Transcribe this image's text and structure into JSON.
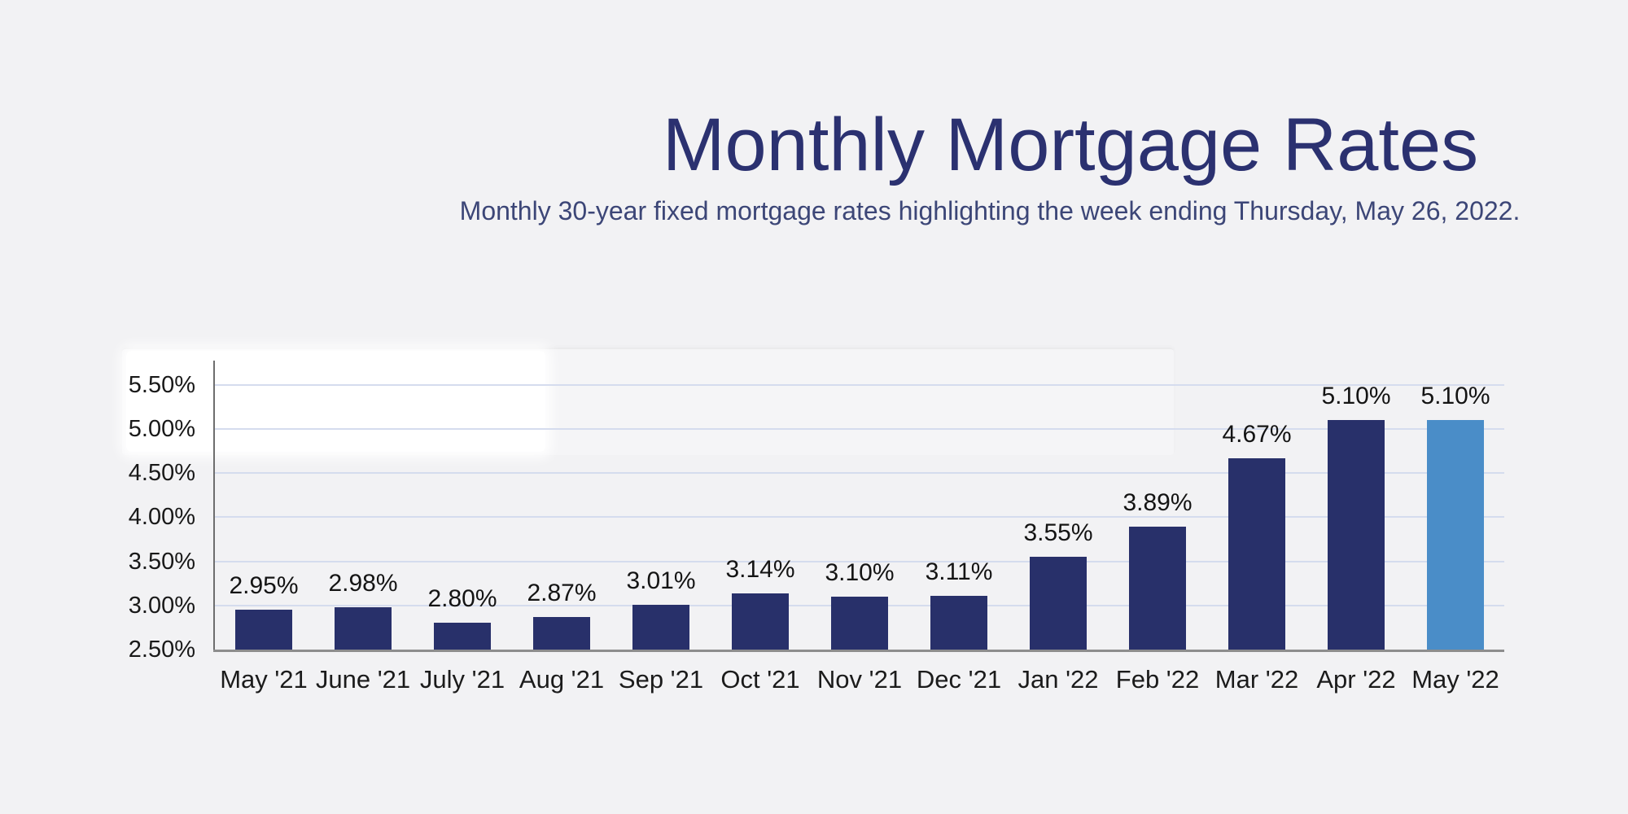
{
  "page": {
    "background": "#f2f2f4"
  },
  "header": {
    "title": "Monthly Mortgage Rates",
    "subtitle": "Monthly 30-year fixed mortgage rates highlighting the week ending Thursday, May 26, 2022.",
    "title_color": "#2b3170",
    "subtitle_color": "#3c4677"
  },
  "chart_data": {
    "type": "bar",
    "title": "Monthly Mortgage Rates",
    "subtitle": "Monthly 30-year fixed mortgage rates highlighting the week ending Thursday, May 26, 2022.",
    "categories": [
      "May '21",
      "June '21",
      "July '21",
      "Aug '21",
      "Sep '21",
      "Oct '21",
      "Nov '21",
      "Dec '21",
      "Jan '22",
      "Feb '22",
      "Mar '22",
      "Apr '22",
      "May '22"
    ],
    "values": [
      2.95,
      2.98,
      2.8,
      2.87,
      3.01,
      3.14,
      3.1,
      3.11,
      3.55,
      3.89,
      4.67,
      5.1,
      5.1
    ],
    "data_labels": [
      "2.95%",
      "2.98%",
      "2.80%",
      "2.87%",
      "3.01%",
      "3.14%",
      "3.10%",
      "3.11%",
      "3.55%",
      "3.89%",
      "4.67%",
      "5.10%",
      "5.10%"
    ],
    "y_ticks": [
      "5.50%",
      "5.00%",
      "4.50%",
      "4.00%",
      "3.50%",
      "3.00%",
      "2.50%"
    ],
    "y_tick_values": [
      5.5,
      5.0,
      4.5,
      4.0,
      3.5,
      3.0,
      2.5
    ],
    "ylim": [
      2.5,
      5.75
    ],
    "grid": true,
    "legend": "none",
    "xlabel": "",
    "ylabel": "",
    "bar_color": "#28306a",
    "highlight_bar_color": "#4a8dc8",
    "highlight_index": 12,
    "gridline_color": "#d5dcee",
    "axis_color": "#6e6e6e"
  }
}
